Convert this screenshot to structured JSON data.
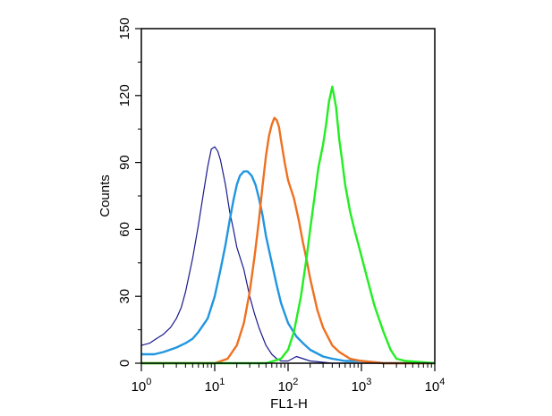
{
  "chart_data": {
    "type": "line",
    "title": "",
    "xlabel": "FL1-H",
    "ylabel": "Counts",
    "x_scale": "log",
    "xlim": [
      1,
      10000
    ],
    "ylim": [
      0,
      150
    ],
    "x_ticks": [
      {
        "value": 1,
        "base": "10",
        "exp": "0"
      },
      {
        "value": 10,
        "base": "10",
        "exp": "1"
      },
      {
        "value": 100,
        "base": "10",
        "exp": "2"
      },
      {
        "value": 1000,
        "base": "10",
        "exp": "3"
      },
      {
        "value": 10000,
        "base": "10",
        "exp": "4"
      }
    ],
    "y_ticks": [
      "0",
      "30",
      "60",
      "90",
      "120",
      "150"
    ],
    "grid": false,
    "legend": "none",
    "series": [
      {
        "color": "#1a1a8c",
        "x": [
          1,
          1.3,
          1.6,
          2,
          2.5,
          3,
          3.5,
          4,
          5,
          6,
          7,
          8,
          9,
          10,
          11,
          12,
          14,
          16,
          18,
          20,
          25,
          30,
          35,
          40,
          50,
          60,
          70,
          80,
          100,
          130,
          200,
          400,
          1000,
          10000
        ],
        "values": [
          8,
          9,
          11,
          13,
          16,
          20,
          25,
          32,
          47,
          62,
          76,
          88,
          96,
          97,
          95,
          91,
          80,
          68,
          60,
          52,
          42,
          30,
          22,
          16,
          8,
          4,
          2,
          1,
          1,
          3,
          1,
          0,
          0,
          0
        ]
      },
      {
        "color": "#2196e0",
        "x": [
          1,
          1.5,
          2,
          3,
          4,
          5,
          6,
          8,
          10,
          12,
          14,
          16,
          18,
          20,
          22,
          25,
          28,
          32,
          36,
          40,
          45,
          50,
          60,
          70,
          80,
          100,
          130,
          160,
          200,
          300,
          400,
          600,
          1000,
          2000,
          10000
        ],
        "values": [
          4,
          4,
          5,
          7,
          9,
          11,
          14,
          20,
          30,
          42,
          53,
          64,
          73,
          80,
          84,
          86,
          86,
          84,
          80,
          74,
          66,
          57,
          45,
          35,
          27,
          18,
          12,
          9,
          6,
          3,
          2,
          1,
          1,
          0,
          0
        ]
      },
      {
        "color": "#f07020",
        "x": [
          1,
          10,
          15,
          20,
          25,
          30,
          35,
          40,
          45,
          50,
          55,
          60,
          65,
          70,
          75,
          80,
          90,
          100,
          120,
          140,
          160,
          180,
          200,
          250,
          300,
          400,
          500,
          700,
          1000,
          2000,
          10000
        ],
        "values": [
          0,
          0,
          2,
          8,
          18,
          32,
          48,
          64,
          80,
          93,
          102,
          107,
          110,
          109,
          106,
          100,
          90,
          82,
          74,
          64,
          54,
          46,
          38,
          24,
          16,
          8,
          5,
          2,
          1,
          0,
          0
        ]
      },
      {
        "color": "#22ee22",
        "x": [
          1,
          50,
          80,
          100,
          120,
          150,
          180,
          200,
          230,
          260,
          300,
          330,
          360,
          400,
          450,
          500,
          550,
          600,
          700,
          800,
          1000,
          1200,
          1500,
          2000,
          2500,
          3000,
          4000,
          10000
        ],
        "values": [
          0,
          0,
          2,
          6,
          14,
          30,
          48,
          60,
          75,
          88,
          98,
          107,
          117,
          124,
          115,
          100,
          90,
          80,
          68,
          60,
          48,
          38,
          26,
          14,
          6,
          2,
          1,
          0
        ]
      }
    ]
  }
}
